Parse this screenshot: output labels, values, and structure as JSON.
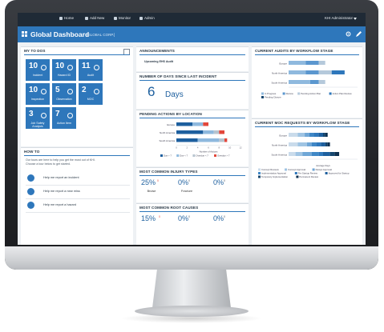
{
  "nav": {
    "items": [
      {
        "label": "Home",
        "icon": "home-icon"
      },
      {
        "label": "Add New",
        "icon": "plus-icon"
      },
      {
        "label": "Monitor",
        "icon": "monitor-icon"
      },
      {
        "label": "Admin",
        "icon": "gear-icon"
      }
    ],
    "user": "KHI Administrator"
  },
  "header": {
    "title": "Global Dashboard",
    "subtitle": "[GLOBAL CORP.]",
    "color": "#2e77bb"
  },
  "todos": {
    "title": "MY TO DOS",
    "tiles": [
      {
        "num": "10",
        "label": "Incident"
      },
      {
        "num": "10",
        "label": "Hazard ID"
      },
      {
        "num": "11",
        "label": "Audit"
      },
      {
        "num": "10",
        "label": "Inspection"
      },
      {
        "num": "5",
        "label": "Observation"
      },
      {
        "num": "2",
        "label": "MOC"
      },
      {
        "num": "3",
        "label": "Job Safety Analysis"
      },
      {
        "num": "7",
        "label": "Action Item"
      }
    ]
  },
  "howto": {
    "title": "HOW TO",
    "intro1": "Our tours are here to help you get the most out of KHI.",
    "intro2": "Choose a tour below to get started.",
    "items": [
      "Help me report an incident",
      "Help me report a near miss",
      "Help me report a hazard"
    ]
  },
  "announcements": {
    "title": "ANNOUNCEMENTS",
    "item": "Upcoming EHS Audit"
  },
  "days": {
    "title": "NUMBER OF DAYS SINCE LAST INCIDENT",
    "value": "6",
    "unit": "Days"
  },
  "pending": {
    "title": "PENDING ACTIONS BY LOCATION",
    "xlabel": "Number of Actions"
  },
  "injury": {
    "title": "MOST COMMON INJURY TYPES",
    "items": [
      {
        "pct": "25%",
        "sub": "0",
        "label": "Bruise"
      },
      {
        "pct": "0%",
        "sub": "0",
        "label": "Fracture"
      },
      {
        "pct": "0%",
        "sub": "0",
        "label": ""
      }
    ]
  },
  "rootcause": {
    "title": "MOST COMMON ROOT CAUSES",
    "items": [
      {
        "pct": "15%",
        "sub": "0"
      },
      {
        "pct": "0%",
        "sub": "0"
      },
      {
        "pct": "0%",
        "sub": "0"
      }
    ]
  },
  "audits": {
    "title": "CURRENT AUDITS BY WORKFLOW STAGE"
  },
  "moc": {
    "title": "CURRENT MOC REQUESTS BY WORKFLOW STAGE",
    "xlabel": "Average Days"
  },
  "chart_data": [
    {
      "type": "bar",
      "title": "PENDING ACTIONS BY LOCATION",
      "xlabel": "Number of Actions",
      "ylabel": "",
      "categories": [
        "Europe",
        "North America",
        "South America"
      ],
      "series": [
        {
          "name": "Due > 7",
          "color": "#1d5f9e",
          "values": [
            3,
            5,
            4
          ]
        },
        {
          "name": "Due < 7",
          "color": "#8fb9de",
          "values": [
            2,
            2,
            4
          ]
        },
        {
          "name": "Overdue < 7",
          "color": "#b7c4cf",
          "values": [
            0,
            1,
            1
          ]
        },
        {
          "name": "Overdue > 7",
          "color": "#e2473b",
          "values": [
            1,
            1,
            0.5
          ]
        }
      ],
      "xticks": [
        "0",
        "2",
        "4",
        "6",
        "8",
        "10",
        "12"
      ],
      "xlim": [
        0,
        12
      ],
      "legend": "bottom"
    },
    {
      "type": "bar",
      "title": "CURRENT AUDITS BY WORKFLOW STAGE",
      "categories": [
        "Europe",
        "North America",
        "South America"
      ],
      "series": [
        {
          "name": "In Progress",
          "color": "#8fb9de",
          "values": [
            4,
            4,
            5
          ]
        },
        {
          "name": "Review",
          "color": "#5b97cf",
          "values": [
            3,
            3,
            2
          ]
        },
        {
          "name": "Pending Action Plan",
          "color": "#b5c9db",
          "values": [
            1.5,
            3,
            1.5
          ]
        },
        {
          "name": "Action Plan Review",
          "color": "#2e77bb",
          "values": [
            0,
            3,
            0
          ]
        },
        {
          "name": "Pending Closure",
          "color": "#14466f",
          "values": [
            0,
            0,
            0
          ]
        }
      ],
      "xlim": [
        0,
        16
      ],
      "legend": "bottom"
    },
    {
      "type": "bar",
      "title": "CURRENT MOC REQUESTS BY WORKFLOW STAGE",
      "xlabel": "Average Days",
      "categories": [
        "Europe",
        "North America",
        "South America"
      ],
      "series": [
        {
          "name": "Concept Reviews",
          "color": "#c9dbeb",
          "values": [
            4,
            4,
            3
          ]
        },
        {
          "name": "Concept Approval",
          "color": "#9fc4e3",
          "values": [
            3,
            4,
            3
          ]
        },
        {
          "name": "Design Approval",
          "color": "#6fa6d6",
          "values": [
            2,
            2,
            4
          ]
        },
        {
          "name": "Implementation Approval",
          "color": "#3f87c6",
          "values": [
            2,
            2,
            3
          ]
        },
        {
          "name": "Pre Startup Review",
          "color": "#2e77bb",
          "values": [
            2,
            2,
            2
          ]
        },
        {
          "name": "Approved for Startup",
          "color": "#1d5f9e",
          "values": [
            2,
            2,
            3
          ]
        },
        {
          "name": "Temporary Implementation",
          "color": "#14466f",
          "values": [
            1,
            1,
            2
          ]
        },
        {
          "name": "Permanent Review",
          "color": "#0d3050",
          "values": [
            1,
            1,
            2
          ]
        }
      ],
      "xlim": [
        0,
        30
      ],
      "legend": "bottom"
    }
  ]
}
